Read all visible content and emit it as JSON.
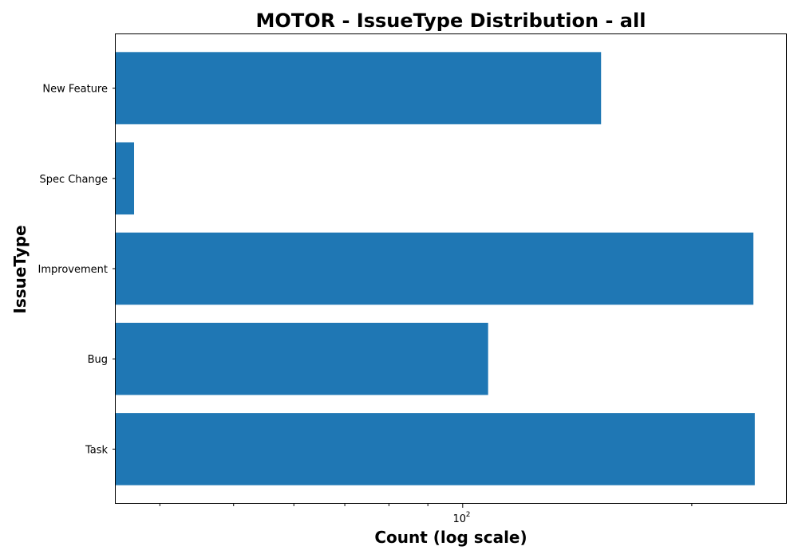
{
  "chart_data": {
    "type": "bar",
    "orientation": "horizontal",
    "title": "MOTOR - IssueType Distribution - all",
    "xlabel": "Count (log scale)",
    "ylabel": "IssueType",
    "x_scale": "log",
    "xlim": [
      35,
      266
    ],
    "x_major_ticks": [
      {
        "value": 100,
        "base": "10",
        "exponent": "2"
      }
    ],
    "x_minor_ticks": [
      40,
      50,
      60,
      70,
      80,
      90,
      200
    ],
    "grid": false,
    "categories": [
      "Task",
      "Bug",
      "Improvement",
      "Spec Change",
      "New Feature"
    ],
    "values": [
      242,
      108,
      241,
      37,
      152
    ],
    "bar_color": "#1f77b4"
  }
}
